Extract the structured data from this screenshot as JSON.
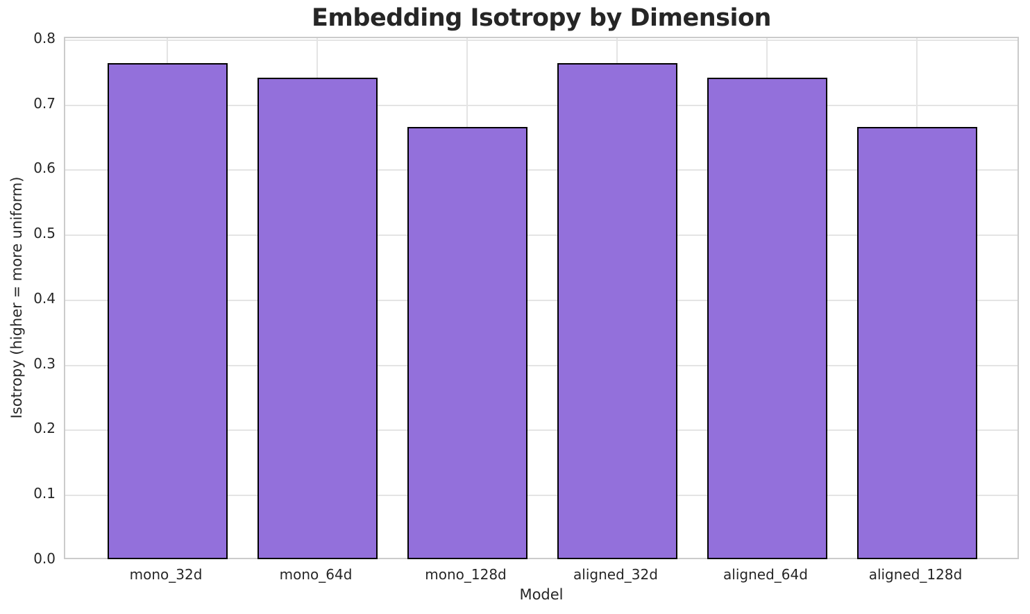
{
  "chart_data": {
    "type": "bar",
    "title": "Embedding Isotropy by Dimension",
    "xlabel": "Model",
    "ylabel": "Isotropy (higher = more uniform)",
    "categories": [
      "mono_32d",
      "mono_64d",
      "mono_128d",
      "aligned_32d",
      "aligned_64d",
      "aligned_128d"
    ],
    "values": [
      0.765,
      0.742,
      0.667,
      0.765,
      0.742,
      0.667
    ],
    "ylim": [
      0.0,
      0.8
    ],
    "yticks": [
      0.0,
      0.1,
      0.2,
      0.3,
      0.4,
      0.5,
      0.6,
      0.7,
      0.8
    ],
    "ytick_labels": [
      "0.0",
      "0.1",
      "0.2",
      "0.3",
      "0.4",
      "0.5",
      "0.6",
      "0.7",
      "0.8"
    ],
    "grid": "both",
    "legend": "none",
    "bar_color": "#9370DB",
    "bar_edge_color": "#000000",
    "grid_color": "#e4e4e4",
    "spine_color": "#cbcbcb",
    "text_color": "#262626",
    "background_color": "#ffffff"
  }
}
